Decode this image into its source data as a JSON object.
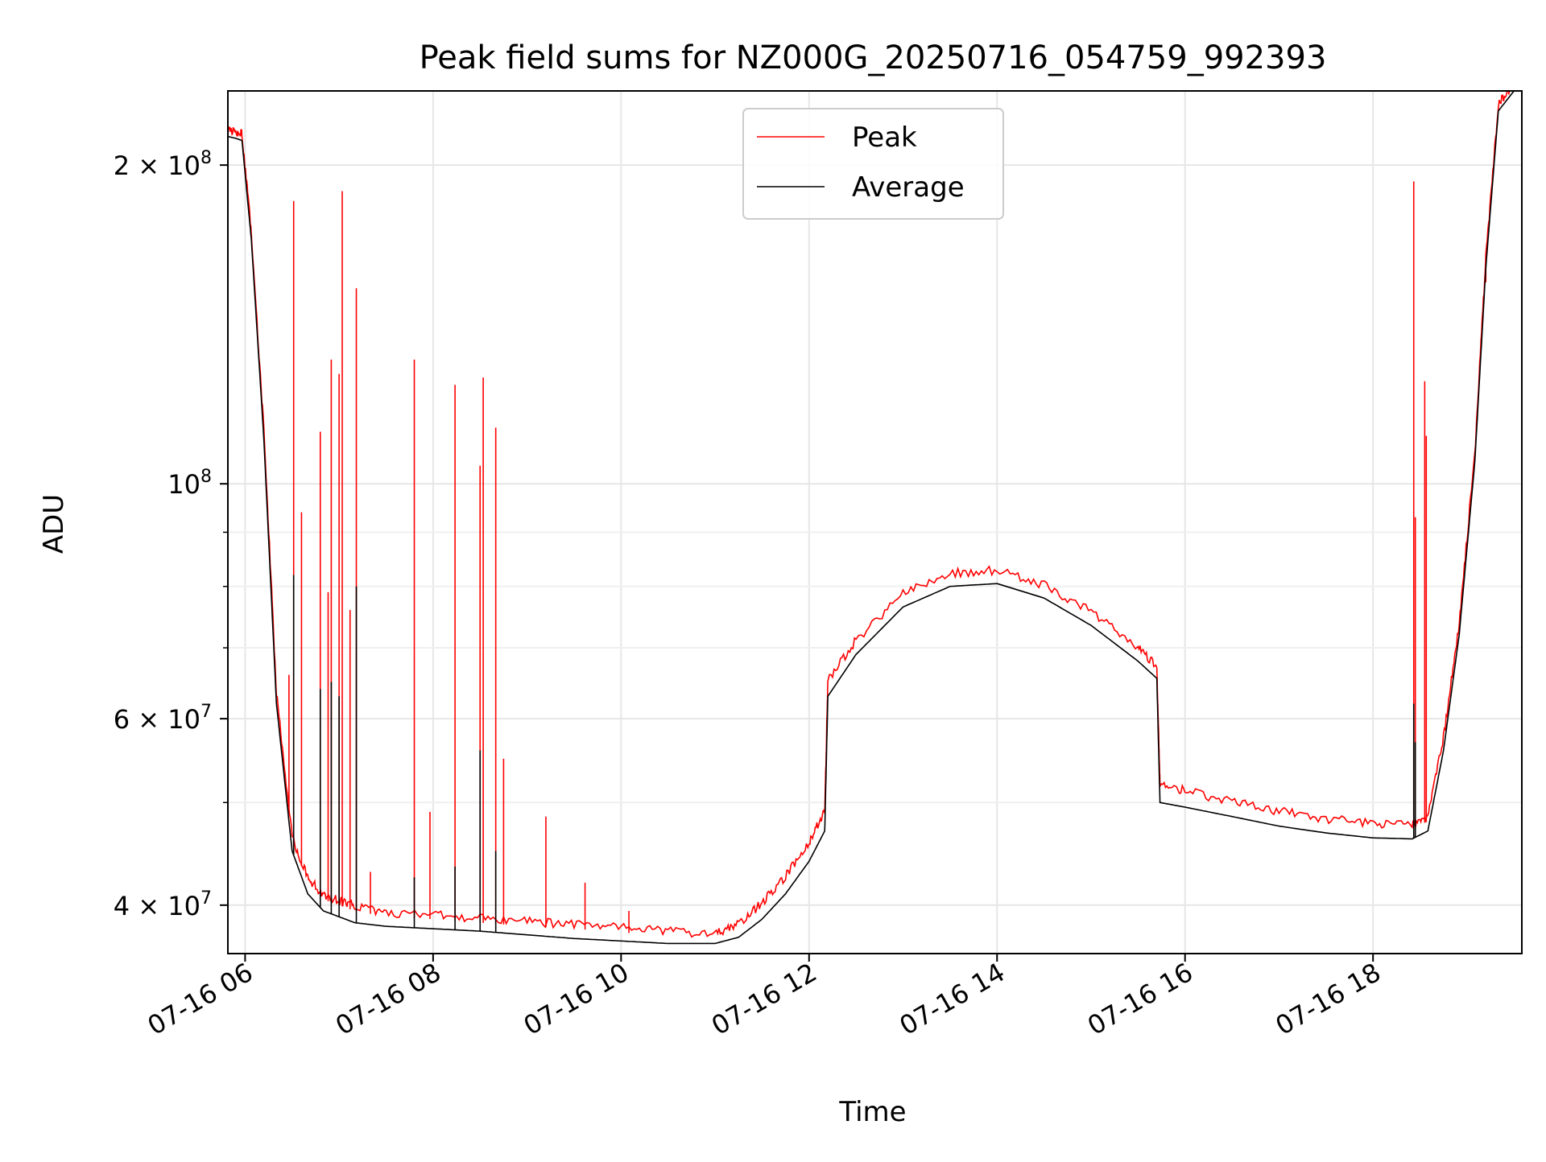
{
  "chart_data": {
    "type": "line",
    "title": "Peak field sums for NZ000G_20250716_054759_992393",
    "xlabel": "Time",
    "ylabel": "ADU",
    "x_range": [
      "2025-07-16T05:49",
      "2025-07-16T19:35"
    ],
    "xticks": [
      "07-16 06",
      "07-16 08",
      "07-16 10",
      "07-16 12",
      "07-16 14",
      "07-16 16",
      "07-16 18"
    ],
    "y_scale": "log",
    "ylim": [
      36000000,
      235000000
    ],
    "yticks": [
      {
        "value": 40000000,
        "mantissa": "4",
        "exponent": "7"
      },
      {
        "value": 60000000,
        "mantissa": "6",
        "exponent": "7"
      },
      {
        "value": 100000000,
        "mantissa": "",
        "exponent": "8"
      },
      {
        "value": 200000000,
        "mantissa": "2",
        "exponent": "8"
      }
    ],
    "grid": true,
    "legend_position": "top-center",
    "series": [
      {
        "name": "Average",
        "color": "#000000",
        "x": [
          "2025-07-16T05:48",
          "2025-07-16T05:54",
          "2025-07-16T05:58",
          "2025-07-16T06:04",
          "2025-07-16T06:12",
          "2025-07-16T06:20",
          "2025-07-16T06:30",
          "2025-07-16T06:40",
          "2025-07-16T06:50",
          "2025-07-16T07:00",
          "2025-07-16T07:10",
          "2025-07-16T07:30",
          "2025-07-16T08:00",
          "2025-07-16T08:30",
          "2025-07-16T09:00",
          "2025-07-16T09:30",
          "2025-07-16T10:00",
          "2025-07-16T10:30",
          "2025-07-16T11:00",
          "2025-07-16T11:15",
          "2025-07-16T11:30",
          "2025-07-16T11:45",
          "2025-07-16T12:00",
          "2025-07-16T12:10",
          "2025-07-16T12:12",
          "2025-07-16T12:30",
          "2025-07-16T13:00",
          "2025-07-16T13:30",
          "2025-07-16T14:00",
          "2025-07-16T14:30",
          "2025-07-16T15:00",
          "2025-07-16T15:30",
          "2025-07-16T15:42",
          "2025-07-16T15:44",
          "2025-07-16T16:00",
          "2025-07-16T16:30",
          "2025-07-16T17:00",
          "2025-07-16T17:30",
          "2025-07-16T18:00",
          "2025-07-16T18:25",
          "2025-07-16T18:35",
          "2025-07-16T18:45",
          "2025-07-16T18:55",
          "2025-07-16T19:05",
          "2025-07-16T19:12",
          "2025-07-16T19:20",
          "2025-07-16T19:30"
        ],
        "y": [
          213000000,
          212000000,
          211000000,
          170000000,
          110000000,
          62000000,
          45000000,
          41000000,
          39500000,
          39000000,
          38500000,
          38200000,
          38000000,
          37800000,
          37500000,
          37200000,
          37000000,
          36800000,
          36800000,
          37300000,
          38800000,
          41000000,
          44000000,
          47000000,
          63000000,
          69000000,
          76500000,
          80000000,
          80500000,
          78000000,
          73500000,
          68000000,
          65500000,
          50000000,
          49500000,
          48500000,
          47500000,
          46800000,
          46300000,
          46200000,
          47000000,
          56000000,
          72000000,
          105000000,
          160000000,
          225000000,
          235000000
        ]
      },
      {
        "name": "Peak",
        "color": "#ff0000",
        "x": [
          "2025-07-16T05:48",
          "2025-07-16T05:54",
          "2025-07-16T05:58",
          "2025-07-16T06:04",
          "2025-07-16T06:12",
          "2025-07-16T06:20",
          "2025-07-16T06:30",
          "2025-07-16T06:40",
          "2025-07-16T06:50",
          "2025-07-16T07:00",
          "2025-07-16T07:10",
          "2025-07-16T07:30",
          "2025-07-16T08:00",
          "2025-07-16T08:30",
          "2025-07-16T09:00",
          "2025-07-16T09:30",
          "2025-07-16T10:00",
          "2025-07-16T10:30",
          "2025-07-16T11:00",
          "2025-07-16T11:15",
          "2025-07-16T11:30",
          "2025-07-16T11:45",
          "2025-07-16T12:00",
          "2025-07-16T12:10",
          "2025-07-16T12:12",
          "2025-07-16T12:30",
          "2025-07-16T13:00",
          "2025-07-16T13:30",
          "2025-07-16T14:00",
          "2025-07-16T14:30",
          "2025-07-16T15:00",
          "2025-07-16T15:30",
          "2025-07-16T15:42",
          "2025-07-16T15:44",
          "2025-07-16T16:00",
          "2025-07-16T16:30",
          "2025-07-16T17:00",
          "2025-07-16T17:30",
          "2025-07-16T18:00",
          "2025-07-16T18:25",
          "2025-07-16T18:35",
          "2025-07-16T18:45",
          "2025-07-16T18:55",
          "2025-07-16T19:05",
          "2025-07-16T19:12",
          "2025-07-16T19:20",
          "2025-07-16T19:30"
        ],
        "y": [
          215000000,
          213000000,
          212000000,
          171000000,
          111000000,
          63000000,
          46000000,
          42000000,
          40500000,
          40000000,
          39500000,
          39000000,
          38800000,
          38500000,
          38200000,
          38000000,
          37700000,
          37400000,
          37200000,
          38000000,
          39800000,
          42200000,
          45500000,
          48500000,
          64500000,
          70500000,
          78000000,
          81500000,
          82000000,
          79500000,
          75000000,
          69500000,
          66500000,
          51500000,
          50800000,
          49600000,
          48600000,
          47800000,
          47300000,
          47200000,
          48000000,
          57000000,
          73000000,
          106000000,
          162000000,
          226000000,
          236000000
        ]
      }
    ],
    "peak_spikes": [
      {
        "x": "2025-07-16T06:25",
        "y": 54000000
      },
      {
        "x": "2025-07-16T06:28",
        "y": 66000000
      },
      {
        "x": "2025-07-16T06:31",
        "y": 185000000
      },
      {
        "x": "2025-07-16T06:36",
        "y": 94000000
      },
      {
        "x": "2025-07-16T06:48",
        "y": 112000000
      },
      {
        "x": "2025-07-16T06:53",
        "y": 79000000
      },
      {
        "x": "2025-07-16T06:55",
        "y": 131000000
      },
      {
        "x": "2025-07-16T07:00",
        "y": 127000000
      },
      {
        "x": "2025-07-16T07:02",
        "y": 189000000
      },
      {
        "x": "2025-07-16T07:07",
        "y": 76000000
      },
      {
        "x": "2025-07-16T07:11",
        "y": 153000000
      },
      {
        "x": "2025-07-16T07:20",
        "y": 43000000
      },
      {
        "x": "2025-07-16T07:48",
        "y": 131000000
      },
      {
        "x": "2025-07-16T07:58",
        "y": 49000000
      },
      {
        "x": "2025-07-16T08:14",
        "y": 124000000
      },
      {
        "x": "2025-07-16T08:30",
        "y": 104000000
      },
      {
        "x": "2025-07-16T08:32",
        "y": 126000000
      },
      {
        "x": "2025-07-16T08:40",
        "y": 113000000
      },
      {
        "x": "2025-07-16T08:45",
        "y": 55000000
      },
      {
        "x": "2025-07-16T09:12",
        "y": 48500000
      },
      {
        "x": "2025-07-16T09:37",
        "y": 42000000
      },
      {
        "x": "2025-07-16T10:05",
        "y": 39500000
      },
      {
        "x": "2025-07-16T18:26",
        "y": 193000000
      },
      {
        "x": "2025-07-16T18:27",
        "y": 93000000
      },
      {
        "x": "2025-07-16T18:33",
        "y": 125000000
      },
      {
        "x": "2025-07-16T18:34",
        "y": 111000000
      },
      {
        "x": "2025-07-16T19:12",
        "y": 155000000
      }
    ],
    "average_spikes": [
      {
        "x": "2025-07-16T06:31",
        "y": 82000000
      },
      {
        "x": "2025-07-16T06:48",
        "y": 64000000
      },
      {
        "x": "2025-07-16T06:55",
        "y": 65000000
      },
      {
        "x": "2025-07-16T07:00",
        "y": 63000000
      },
      {
        "x": "2025-07-16T07:11",
        "y": 80000000
      },
      {
        "x": "2025-07-16T07:48",
        "y": 42500000
      },
      {
        "x": "2025-07-16T08:14",
        "y": 43500000
      },
      {
        "x": "2025-07-16T08:30",
        "y": 56000000
      },
      {
        "x": "2025-07-16T08:40",
        "y": 45000000
      },
      {
        "x": "2025-07-16T18:26",
        "y": 62000000
      },
      {
        "x": "2025-07-16T18:27",
        "y": 57000000
      }
    ]
  }
}
